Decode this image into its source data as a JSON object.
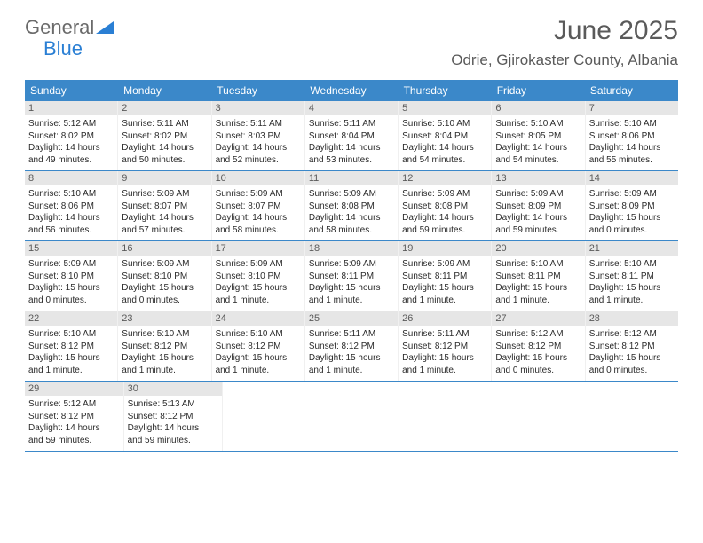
{
  "logo": {
    "general": "General",
    "blue": "Blue"
  },
  "title": "June 2025",
  "location": "Odrie, Gjirokaster County, Albania",
  "colors": {
    "header_bg": "#3b88c9",
    "header_text": "#ffffff",
    "daybar_bg": "#e6e6e6",
    "text": "#2a2a2a",
    "location_text": "#5a5a5a",
    "logo_gray": "#6a6a6a",
    "logo_blue": "#2a7fd4",
    "week_border": "#3b88c9"
  },
  "weekdays": [
    "Sunday",
    "Monday",
    "Tuesday",
    "Wednesday",
    "Thursday",
    "Friday",
    "Saturday"
  ],
  "weeks": [
    [
      {
        "n": "1",
        "sunrise": "Sunrise: 5:12 AM",
        "sunset": "Sunset: 8:02 PM",
        "day1": "Daylight: 14 hours",
        "day2": "and 49 minutes."
      },
      {
        "n": "2",
        "sunrise": "Sunrise: 5:11 AM",
        "sunset": "Sunset: 8:02 PM",
        "day1": "Daylight: 14 hours",
        "day2": "and 50 minutes."
      },
      {
        "n": "3",
        "sunrise": "Sunrise: 5:11 AM",
        "sunset": "Sunset: 8:03 PM",
        "day1": "Daylight: 14 hours",
        "day2": "and 52 minutes."
      },
      {
        "n": "4",
        "sunrise": "Sunrise: 5:11 AM",
        "sunset": "Sunset: 8:04 PM",
        "day1": "Daylight: 14 hours",
        "day2": "and 53 minutes."
      },
      {
        "n": "5",
        "sunrise": "Sunrise: 5:10 AM",
        "sunset": "Sunset: 8:04 PM",
        "day1": "Daylight: 14 hours",
        "day2": "and 54 minutes."
      },
      {
        "n": "6",
        "sunrise": "Sunrise: 5:10 AM",
        "sunset": "Sunset: 8:05 PM",
        "day1": "Daylight: 14 hours",
        "day2": "and 54 minutes."
      },
      {
        "n": "7",
        "sunrise": "Sunrise: 5:10 AM",
        "sunset": "Sunset: 8:06 PM",
        "day1": "Daylight: 14 hours",
        "day2": "and 55 minutes."
      }
    ],
    [
      {
        "n": "8",
        "sunrise": "Sunrise: 5:10 AM",
        "sunset": "Sunset: 8:06 PM",
        "day1": "Daylight: 14 hours",
        "day2": "and 56 minutes."
      },
      {
        "n": "9",
        "sunrise": "Sunrise: 5:09 AM",
        "sunset": "Sunset: 8:07 PM",
        "day1": "Daylight: 14 hours",
        "day2": "and 57 minutes."
      },
      {
        "n": "10",
        "sunrise": "Sunrise: 5:09 AM",
        "sunset": "Sunset: 8:07 PM",
        "day1": "Daylight: 14 hours",
        "day2": "and 58 minutes."
      },
      {
        "n": "11",
        "sunrise": "Sunrise: 5:09 AM",
        "sunset": "Sunset: 8:08 PM",
        "day1": "Daylight: 14 hours",
        "day2": "and 58 minutes."
      },
      {
        "n": "12",
        "sunrise": "Sunrise: 5:09 AM",
        "sunset": "Sunset: 8:08 PM",
        "day1": "Daylight: 14 hours",
        "day2": "and 59 minutes."
      },
      {
        "n": "13",
        "sunrise": "Sunrise: 5:09 AM",
        "sunset": "Sunset: 8:09 PM",
        "day1": "Daylight: 14 hours",
        "day2": "and 59 minutes."
      },
      {
        "n": "14",
        "sunrise": "Sunrise: 5:09 AM",
        "sunset": "Sunset: 8:09 PM",
        "day1": "Daylight: 15 hours",
        "day2": "and 0 minutes."
      }
    ],
    [
      {
        "n": "15",
        "sunrise": "Sunrise: 5:09 AM",
        "sunset": "Sunset: 8:10 PM",
        "day1": "Daylight: 15 hours",
        "day2": "and 0 minutes."
      },
      {
        "n": "16",
        "sunrise": "Sunrise: 5:09 AM",
        "sunset": "Sunset: 8:10 PM",
        "day1": "Daylight: 15 hours",
        "day2": "and 0 minutes."
      },
      {
        "n": "17",
        "sunrise": "Sunrise: 5:09 AM",
        "sunset": "Sunset: 8:10 PM",
        "day1": "Daylight: 15 hours",
        "day2": "and 1 minute."
      },
      {
        "n": "18",
        "sunrise": "Sunrise: 5:09 AM",
        "sunset": "Sunset: 8:11 PM",
        "day1": "Daylight: 15 hours",
        "day2": "and 1 minute."
      },
      {
        "n": "19",
        "sunrise": "Sunrise: 5:09 AM",
        "sunset": "Sunset: 8:11 PM",
        "day1": "Daylight: 15 hours",
        "day2": "and 1 minute."
      },
      {
        "n": "20",
        "sunrise": "Sunrise: 5:10 AM",
        "sunset": "Sunset: 8:11 PM",
        "day1": "Daylight: 15 hours",
        "day2": "and 1 minute."
      },
      {
        "n": "21",
        "sunrise": "Sunrise: 5:10 AM",
        "sunset": "Sunset: 8:11 PM",
        "day1": "Daylight: 15 hours",
        "day2": "and 1 minute."
      }
    ],
    [
      {
        "n": "22",
        "sunrise": "Sunrise: 5:10 AM",
        "sunset": "Sunset: 8:12 PM",
        "day1": "Daylight: 15 hours",
        "day2": "and 1 minute."
      },
      {
        "n": "23",
        "sunrise": "Sunrise: 5:10 AM",
        "sunset": "Sunset: 8:12 PM",
        "day1": "Daylight: 15 hours",
        "day2": "and 1 minute."
      },
      {
        "n": "24",
        "sunrise": "Sunrise: 5:10 AM",
        "sunset": "Sunset: 8:12 PM",
        "day1": "Daylight: 15 hours",
        "day2": "and 1 minute."
      },
      {
        "n": "25",
        "sunrise": "Sunrise: 5:11 AM",
        "sunset": "Sunset: 8:12 PM",
        "day1": "Daylight: 15 hours",
        "day2": "and 1 minute."
      },
      {
        "n": "26",
        "sunrise": "Sunrise: 5:11 AM",
        "sunset": "Sunset: 8:12 PM",
        "day1": "Daylight: 15 hours",
        "day2": "and 1 minute."
      },
      {
        "n": "27",
        "sunrise": "Sunrise: 5:12 AM",
        "sunset": "Sunset: 8:12 PM",
        "day1": "Daylight: 15 hours",
        "day2": "and 0 minutes."
      },
      {
        "n": "28",
        "sunrise": "Sunrise: 5:12 AM",
        "sunset": "Sunset: 8:12 PM",
        "day1": "Daylight: 15 hours",
        "day2": "and 0 minutes."
      }
    ],
    [
      {
        "n": "29",
        "sunrise": "Sunrise: 5:12 AM",
        "sunset": "Sunset: 8:12 PM",
        "day1": "Daylight: 14 hours",
        "day2": "and 59 minutes."
      },
      {
        "n": "30",
        "sunrise": "Sunrise: 5:13 AM",
        "sunset": "Sunset: 8:12 PM",
        "day1": "Daylight: 14 hours",
        "day2": "and 59 minutes."
      },
      null,
      null,
      null,
      null,
      null
    ]
  ]
}
